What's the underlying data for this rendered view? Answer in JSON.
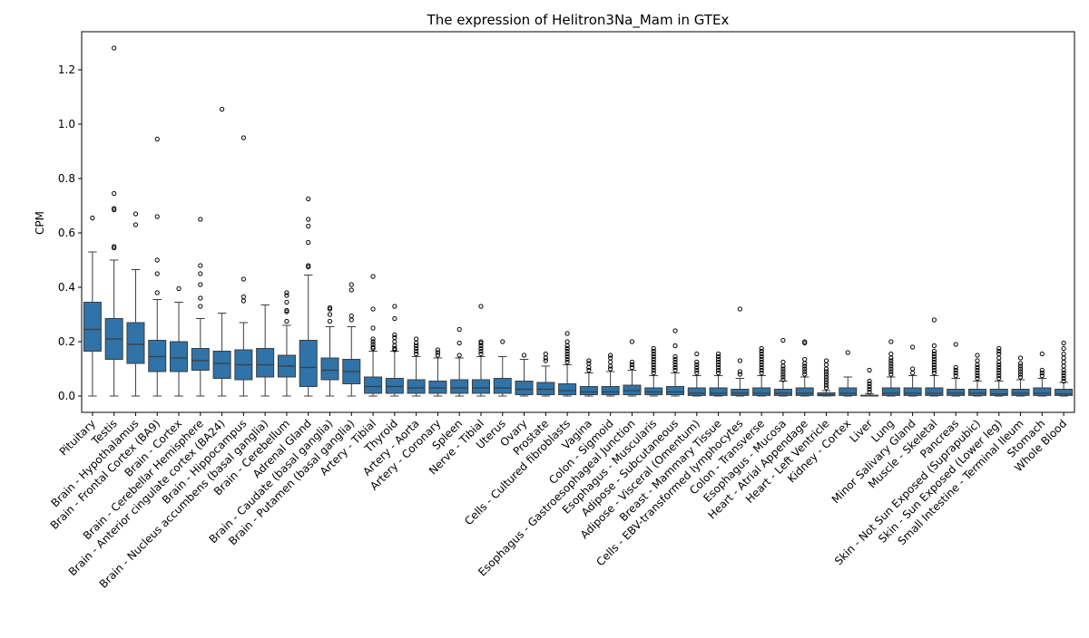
{
  "chart_data": {
    "type": "box",
    "title": "The expression of Helitron3Na_Mam in GTEx",
    "xlabel": "",
    "ylabel": "CPM",
    "ylim": [
      -0.06,
      1.34
    ],
    "yticks": [
      "0.0",
      "0.2",
      "0.4",
      "0.6",
      "0.8",
      "1.0",
      "1.2"
    ],
    "grid": false,
    "legend": "none",
    "box_color": "#2f73a8",
    "categories": [
      "Pituitary",
      "Testis",
      "Brain - Hypothalamus",
      "Brain - Frontal Cortex (BA9)",
      "Brain - Cortex",
      "Brain - Cerebellar Hemisphere",
      "Brain - Anterior cingulate cortex (BA24)",
      "Brain - Hippocampus",
      "Brain - Nucleus accumbens (basal ganglia)",
      "Brain - Cerebellum",
      "Adrenal Gland",
      "Brain - Caudate (basal ganglia)",
      "Brain - Putamen (basal ganglia)",
      "Artery - Tibial",
      "Thyroid",
      "Artery - Aorta",
      "Artery - Coronary",
      "Spleen",
      "Nerve - Tibial",
      "Uterus",
      "Ovary",
      "Prostate",
      "Cells - Cultured fibroblasts",
      "Vagina",
      "Colon - Sigmoid",
      "Esophagus - Gastroesophageal Junction",
      "Esophagus - Muscularis",
      "Adipose - Subcutaneous",
      "Adipose - Visceral (Omentum)",
      "Breast - Mammary Tissue",
      "Cells - EBV-transformed lymphocytes",
      "Colon - Transverse",
      "Esophagus - Mucosa",
      "Heart - Atrial Appendage",
      "Heart - Left Ventricle",
      "Kidney - Cortex",
      "Liver",
      "Lung",
      "Minor Salivary Gland",
      "Muscle - Skeletal",
      "Pancreas",
      "Skin - Not Sun Exposed (Suprapubic)",
      "Skin - Sun Exposed (Lower leg)",
      "Small Intestine - Terminal Ileum",
      "Stomach",
      "Whole Blood"
    ],
    "boxes": [
      {
        "wlo": 0,
        "q1": 0.165,
        "med": 0.245,
        "q3": 0.345,
        "whi": 0.53,
        "fliers": [
          0.655
        ]
      },
      {
        "wlo": 0,
        "q1": 0.135,
        "med": 0.21,
        "q3": 0.285,
        "whi": 0.5,
        "fliers": [
          0.545,
          0.55,
          0.685,
          0.69,
          0.745,
          1.28
        ]
      },
      {
        "wlo": 0,
        "q1": 0.12,
        "med": 0.19,
        "q3": 0.27,
        "whi": 0.465,
        "fliers": [
          0.63,
          0.67
        ]
      },
      {
        "wlo": 0,
        "q1": 0.09,
        "med": 0.145,
        "q3": 0.205,
        "whi": 0.355,
        "fliers": [
          0.38,
          0.45,
          0.5,
          0.66,
          0.945
        ]
      },
      {
        "wlo": 0,
        "q1": 0.09,
        "med": 0.14,
        "q3": 0.2,
        "whi": 0.345,
        "fliers": [
          0.395
        ]
      },
      {
        "wlo": 0,
        "q1": 0.095,
        "med": 0.13,
        "q3": 0.175,
        "whi": 0.285,
        "fliers": [
          0.33,
          0.36,
          0.41,
          0.45,
          0.48,
          0.65
        ]
      },
      {
        "wlo": 0,
        "q1": 0.065,
        "med": 0.12,
        "q3": 0.165,
        "whi": 0.305,
        "fliers": [
          1.055
        ]
      },
      {
        "wlo": 0,
        "q1": 0.06,
        "med": 0.115,
        "q3": 0.17,
        "whi": 0.27,
        "fliers": [
          0.35,
          0.365,
          0.43,
          0.95
        ]
      },
      {
        "wlo": 0,
        "q1": 0.07,
        "med": 0.115,
        "q3": 0.175,
        "whi": 0.335,
        "fliers": []
      },
      {
        "wlo": 0,
        "q1": 0.07,
        "med": 0.11,
        "q3": 0.15,
        "whi": 0.26,
        "fliers": [
          0.275,
          0.31,
          0.315,
          0.345,
          0.37,
          0.38
        ]
      },
      {
        "wlo": 0,
        "q1": 0.035,
        "med": 0.105,
        "q3": 0.205,
        "whi": 0.445,
        "fliers": [
          0.475,
          0.48,
          0.565,
          0.625,
          0.65,
          0.725
        ]
      },
      {
        "wlo": 0,
        "q1": 0.06,
        "med": 0.095,
        "q3": 0.14,
        "whi": 0.255,
        "fliers": [
          0.275,
          0.3,
          0.32,
          0.325
        ]
      },
      {
        "wlo": 0,
        "q1": 0.045,
        "med": 0.09,
        "q3": 0.135,
        "whi": 0.255,
        "fliers": [
          0.28,
          0.295,
          0.39,
          0.41
        ]
      },
      {
        "wlo": 0,
        "q1": 0.01,
        "med": 0.035,
        "q3": 0.07,
        "whi": 0.165,
        "fliers": [
          0.175,
          0.18,
          0.19,
          0.2,
          0.21,
          0.25,
          0.32,
          0.44
        ]
      },
      {
        "wlo": 0,
        "q1": 0.01,
        "med": 0.035,
        "q3": 0.065,
        "whi": 0.165,
        "fliers": [
          0.17,
          0.175,
          0.185,
          0.2,
          0.215,
          0.225,
          0.285,
          0.33
        ]
      },
      {
        "wlo": 0,
        "q1": 0.01,
        "med": 0.03,
        "q3": 0.06,
        "whi": 0.145,
        "fliers": [
          0.155,
          0.165,
          0.175,
          0.185,
          0.195,
          0.21
        ]
      },
      {
        "wlo": 0,
        "q1": 0.01,
        "med": 0.03,
        "q3": 0.055,
        "whi": 0.14,
        "fliers": [
          0.15,
          0.16,
          0.17
        ]
      },
      {
        "wlo": 0,
        "q1": 0.01,
        "med": 0.03,
        "q3": 0.06,
        "whi": 0.14,
        "fliers": [
          0.15,
          0.195,
          0.245
        ]
      },
      {
        "wlo": 0,
        "q1": 0.01,
        "med": 0.03,
        "q3": 0.06,
        "whi": 0.145,
        "fliers": [
          0.155,
          0.165,
          0.175,
          0.185,
          0.195,
          0.2,
          0.33
        ]
      },
      {
        "wlo": 0,
        "q1": 0.01,
        "med": 0.03,
        "q3": 0.065,
        "whi": 0.145,
        "fliers": [
          0.2
        ]
      },
      {
        "wlo": 0,
        "q1": 0.005,
        "med": 0.025,
        "q3": 0.055,
        "whi": 0.135,
        "fliers": [
          0.15
        ]
      },
      {
        "wlo": 0,
        "q1": 0.005,
        "med": 0.025,
        "q3": 0.05,
        "whi": 0.11,
        "fliers": [
          0.13,
          0.14,
          0.155
        ]
      },
      {
        "wlo": 0,
        "q1": 0.005,
        "med": 0.02,
        "q3": 0.045,
        "whi": 0.115,
        "fliers": [
          0.125,
          0.135,
          0.145,
          0.155,
          0.165,
          0.175,
          0.185,
          0.2,
          0.23
        ]
      },
      {
        "wlo": 0,
        "q1": 0.005,
        "med": 0.015,
        "q3": 0.035,
        "whi": 0.085,
        "fliers": [
          0.095,
          0.105,
          0.12,
          0.13
        ]
      },
      {
        "wlo": 0,
        "q1": 0.005,
        "med": 0.015,
        "q3": 0.035,
        "whi": 0.09,
        "fliers": [
          0.1,
          0.11,
          0.125,
          0.14,
          0.15
        ]
      },
      {
        "wlo": 0,
        "q1": 0.005,
        "med": 0.02,
        "q3": 0.04,
        "whi": 0.095,
        "fliers": [
          0.105,
          0.115,
          0.125,
          0.2
        ]
      },
      {
        "wlo": 0,
        "q1": 0.005,
        "med": 0.015,
        "q3": 0.03,
        "whi": 0.075,
        "fliers": [
          0.085,
          0.095,
          0.105,
          0.115,
          0.125,
          0.135,
          0.145,
          0.155,
          0.165,
          0.175
        ]
      },
      {
        "wlo": 0,
        "q1": 0.005,
        "med": 0.015,
        "q3": 0.035,
        "whi": 0.085,
        "fliers": [
          0.095,
          0.105,
          0.115,
          0.125,
          0.135,
          0.145,
          0.185,
          0.24
        ]
      },
      {
        "wlo": 0,
        "q1": 0.002,
        "med": 0.01,
        "q3": 0.03,
        "whi": 0.075,
        "fliers": [
          0.085,
          0.095,
          0.105,
          0.115,
          0.125,
          0.155
        ]
      },
      {
        "wlo": 0,
        "q1": 0.002,
        "med": 0.01,
        "q3": 0.03,
        "whi": 0.075,
        "fliers": [
          0.085,
          0.095,
          0.105,
          0.115,
          0.125,
          0.135,
          0.145,
          0.155
        ]
      },
      {
        "wlo": 0,
        "q1": 0.002,
        "med": 0.01,
        "q3": 0.025,
        "whi": 0.065,
        "fliers": [
          0.08,
          0.09,
          0.13,
          0.32
        ]
      },
      {
        "wlo": 0,
        "q1": 0.002,
        "med": 0.01,
        "q3": 0.03,
        "whi": 0.075,
        "fliers": [
          0.085,
          0.095,
          0.105,
          0.115,
          0.125,
          0.135,
          0.145,
          0.155,
          0.165,
          0.175
        ]
      },
      {
        "wlo": 0,
        "q1": 0.002,
        "med": 0.01,
        "q3": 0.025,
        "whi": 0.055,
        "fliers": [
          0.06,
          0.07,
          0.08,
          0.09,
          0.1,
          0.11,
          0.125,
          0.205
        ]
      },
      {
        "wlo": 0,
        "q1": 0.002,
        "med": 0.01,
        "q3": 0.03,
        "whi": 0.07,
        "fliers": [
          0.08,
          0.09,
          0.1,
          0.11,
          0.12,
          0.135,
          0.195,
          0.2
        ]
      },
      {
        "wlo": 0,
        "q1": 0.001,
        "med": 0.005,
        "q3": 0.012,
        "whi": 0.02,
        "fliers": [
          0.03,
          0.04,
          0.05,
          0.06,
          0.07,
          0.08,
          0.09,
          0.1,
          0.115,
          0.13
        ]
      },
      {
        "wlo": 0,
        "q1": 0.002,
        "med": 0.01,
        "q3": 0.03,
        "whi": 0.07,
        "fliers": [
          0.16
        ]
      },
      {
        "wlo": 0,
        "q1": 0,
        "med": 0.001,
        "q3": 0.003,
        "whi": 0.008,
        "fliers": [
          0.015,
          0.025,
          0.035,
          0.045,
          0.055,
          0.095
        ]
      },
      {
        "wlo": 0,
        "q1": 0.002,
        "med": 0.01,
        "q3": 0.03,
        "whi": 0.07,
        "fliers": [
          0.08,
          0.09,
          0.1,
          0.11,
          0.12,
          0.13,
          0.14,
          0.155,
          0.2
        ]
      },
      {
        "wlo": 0,
        "q1": 0.002,
        "med": 0.01,
        "q3": 0.03,
        "whi": 0.075,
        "fliers": [
          0.085,
          0.1,
          0.18
        ]
      },
      {
        "wlo": 0,
        "q1": 0.002,
        "med": 0.01,
        "q3": 0.03,
        "whi": 0.075,
        "fliers": [
          0.085,
          0.095,
          0.105,
          0.115,
          0.125,
          0.135,
          0.145,
          0.155,
          0.165,
          0.185,
          0.28
        ]
      },
      {
        "wlo": 0,
        "q1": 0.002,
        "med": 0.01,
        "q3": 0.025,
        "whi": 0.065,
        "fliers": [
          0.075,
          0.085,
          0.095,
          0.105,
          0.19
        ]
      },
      {
        "wlo": 0,
        "q1": 0.002,
        "med": 0.01,
        "q3": 0.025,
        "whi": 0.055,
        "fliers": [
          0.065,
          0.075,
          0.085,
          0.095,
          0.105,
          0.115,
          0.13,
          0.15
        ]
      },
      {
        "wlo": 0,
        "q1": 0.002,
        "med": 0.008,
        "q3": 0.025,
        "whi": 0.055,
        "fliers": [
          0.065,
          0.075,
          0.085,
          0.095,
          0.105,
          0.115,
          0.125,
          0.14,
          0.155,
          0.165,
          0.175
        ]
      },
      {
        "wlo": 0,
        "q1": 0.002,
        "med": 0.01,
        "q3": 0.025,
        "whi": 0.06,
        "fliers": [
          0.07,
          0.08,
          0.09,
          0.1,
          0.11,
          0.12,
          0.14
        ]
      },
      {
        "wlo": 0,
        "q1": 0.002,
        "med": 0.01,
        "q3": 0.03,
        "whi": 0.065,
        "fliers": [
          0.075,
          0.085,
          0.095,
          0.155
        ]
      },
      {
        "wlo": 0,
        "q1": 0.002,
        "med": 0.008,
        "q3": 0.025,
        "whi": 0.05,
        "fliers": [
          0.055,
          0.065,
          0.075,
          0.085,
          0.095,
          0.11,
          0.125,
          0.14,
          0.155,
          0.175,
          0.195
        ]
      }
    ]
  }
}
